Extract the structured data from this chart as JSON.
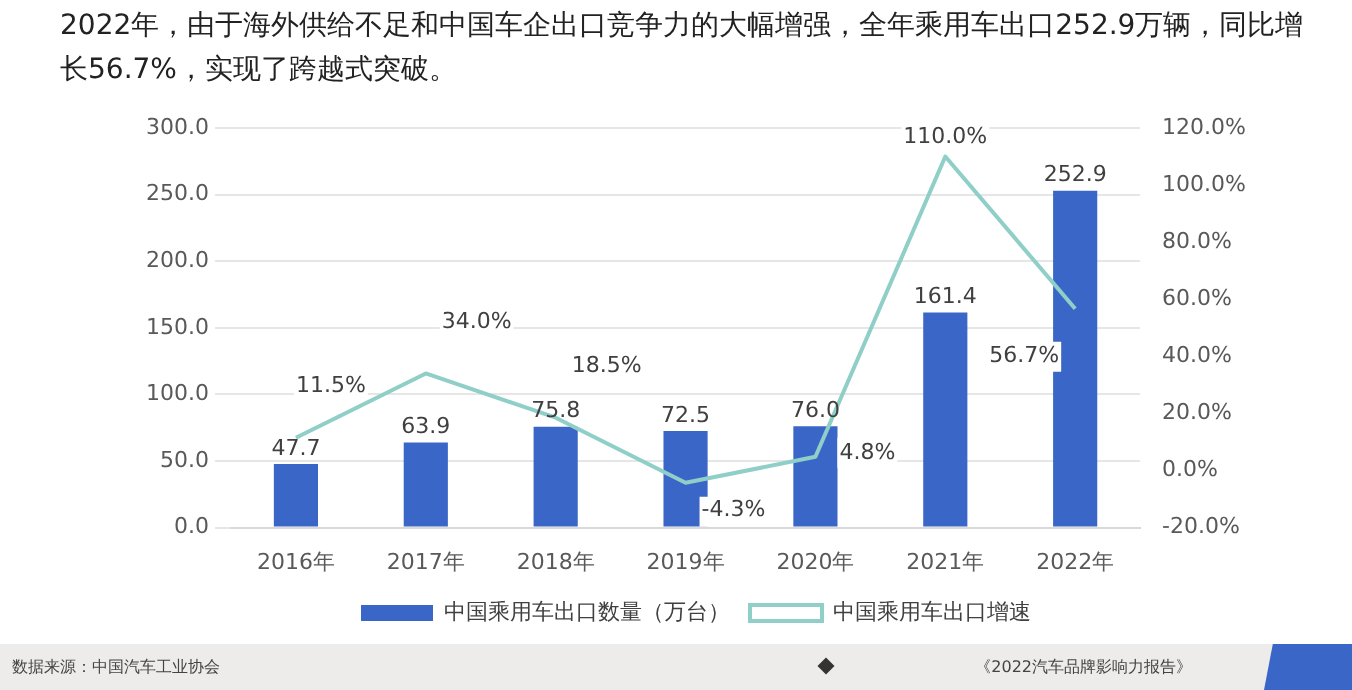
{
  "chart_data": {
    "type": "bar",
    "title": "2022年，由于海外供给不足和中国车企出口竞争力的大幅增强，全年乘用车出口252.9万辆，同比增长56.7%，实现了跨越式突破。",
    "categories": [
      "2016年",
      "2017年",
      "2018年",
      "2019年",
      "2020年",
      "2021年",
      "2022年"
    ],
    "series": [
      {
        "name": "中国乘用车出口数量（万台）",
        "color": "#3a66c8",
        "values": [
          47.7,
          63.9,
          75.8,
          72.5,
          76.0,
          161.4,
          252.9
        ],
        "value_labels": [
          "47.7",
          "63.9",
          "75.8",
          "72.5",
          "76.0",
          "161.4",
          "252.9"
        ]
      },
      {
        "name": "中国乘用车出口增速",
        "type": "line",
        "axis": "y2",
        "color": "#8fcfc8",
        "values": [
          11.5,
          34.0,
          18.5,
          -4.3,
          4.8,
          110.0,
          56.7
        ],
        "value_labels": [
          "11.5%",
          "34.0%",
          "18.5%",
          "-4.3%",
          "4.8%",
          "110.0%",
          "56.7%"
        ]
      }
    ],
    "ylim": [
      0,
      300
    ],
    "yticks": [
      {
        "value": 0,
        "label": "0.0"
      },
      {
        "value": 50,
        "label": "50.0"
      },
      {
        "value": 100,
        "label": "100.0"
      },
      {
        "value": 150,
        "label": "150.0"
      },
      {
        "value": 200,
        "label": "200.0"
      },
      {
        "value": 250,
        "label": "250.0"
      },
      {
        "value": 300,
        "label": "300.0"
      }
    ],
    "y2lim": [
      -20,
      120
    ],
    "y2ticks": [
      {
        "value": -20,
        "label": "-20.0%"
      },
      {
        "value": 0,
        "label": "0.0%"
      },
      {
        "value": 20,
        "label": "20.0%"
      },
      {
        "value": 40,
        "label": "40.0%"
      },
      {
        "value": 60,
        "label": "60.0%"
      },
      {
        "value": 80,
        "label": "80.0%"
      },
      {
        "value": 100,
        "label": "100.0%"
      },
      {
        "value": 120,
        "label": "120.0%"
      }
    ],
    "grid": "y",
    "legend": "bottom",
    "marker": "none",
    "line_style": "solid",
    "annotations": [
      "数据来源：中国汽车工业协会",
      "《2022汽车品牌影响力报告》"
    ]
  }
}
